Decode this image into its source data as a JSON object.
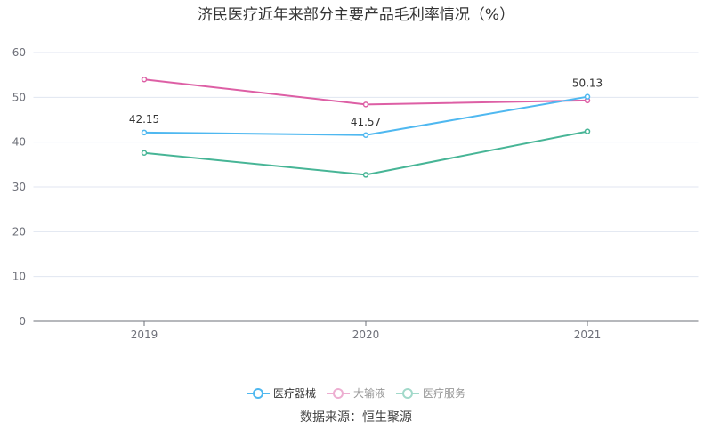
{
  "chart_data": {
    "type": "line",
    "title": "济民医疗近年来部分主要产品毛利率情况（%）",
    "categories": [
      "2019",
      "2020",
      "2021"
    ],
    "ylim": [
      0,
      60
    ],
    "yticks": [
      "0",
      "10",
      "20",
      "30",
      "40",
      "50",
      "60"
    ],
    "grid": true,
    "legend_position": "bottom",
    "series": [
      {
        "name": "医疗器械",
        "color": "#4fb8f0",
        "values": [
          42.15,
          41.57,
          50.13
        ],
        "labels": [
          "42.15",
          "41.57",
          "50.13"
        ],
        "active": true
      },
      {
        "name": "大输液",
        "color": "#dd5fa5",
        "values": [
          54.0,
          48.4,
          49.3
        ],
        "active": false
      },
      {
        "name": "医疗服务",
        "color": "#47b596",
        "values": [
          37.6,
          32.7,
          42.4
        ],
        "active": false
      }
    ]
  },
  "source": "数据来源：恒生聚源"
}
